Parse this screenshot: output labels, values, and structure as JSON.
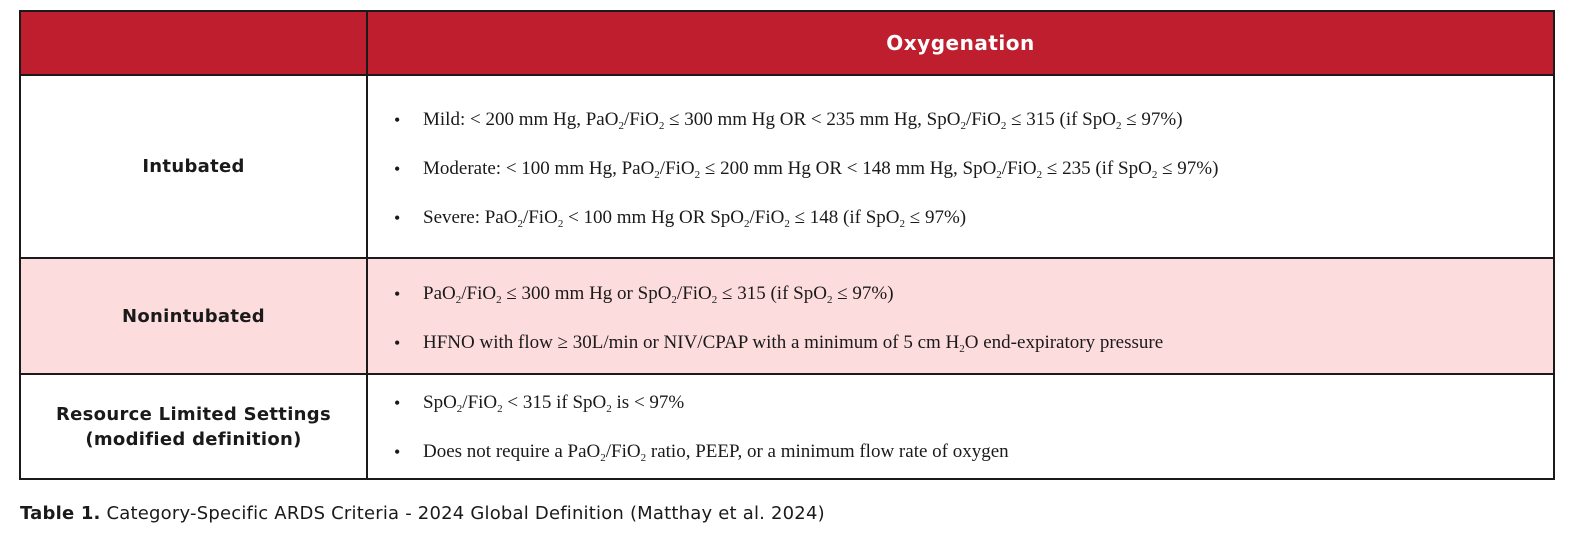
{
  "colors": {
    "header_bg": "#be1e2d",
    "nonintubated_bg": "#fddcde",
    "border": "#1a1a1a"
  },
  "table": {
    "header": {
      "left": "",
      "right": "Oxygenation"
    },
    "rows": [
      {
        "category": "Intubated",
        "criteria": [
          "Mild: < 200 mm Hg, PaO2/FiO2 ≤ 300 mm Hg OR < 235 mm Hg, SpO2/FiO2 ≤ 315 (if SpO2 ≤ 97%)",
          "Moderate: < 100 mm Hg, PaO2/FiO2 ≤ 200 mm Hg OR < 148 mm Hg, SpO2/FiO2 ≤ 235 (if SpO2 ≤ 97%)",
          "Severe: PaO2/FiO2 < 100 mm Hg OR SpO2/FiO2 ≤ 148 (if SpO2 ≤ 97%)"
        ]
      },
      {
        "category": "Nonintubated",
        "criteria": [
          "PaO2/FiO2 ≤ 300 mm Hg or SpO2/FiO2 ≤ 315 (if SpO2 ≤ 97%)",
          "HFNO with flow ≥ 30L/min or NIV/CPAP with a minimum of 5 cm H2O end-expiratory pressure"
        ]
      },
      {
        "category_line1": "Resource Limited Settings",
        "category_line2": "(modified definition)",
        "criteria": [
          "SpO2/FiO2 < 315 if SpO2 is < 97%",
          "Does not require a  PaO2/FiO2 ratio, PEEP, or a minimum flow rate of oxygen"
        ]
      }
    ]
  },
  "caption": {
    "label": "Table 1.",
    "text": " Category-Specific ARDS Criteria - 2024 Global Definition (Matthay et al. 2024)"
  }
}
